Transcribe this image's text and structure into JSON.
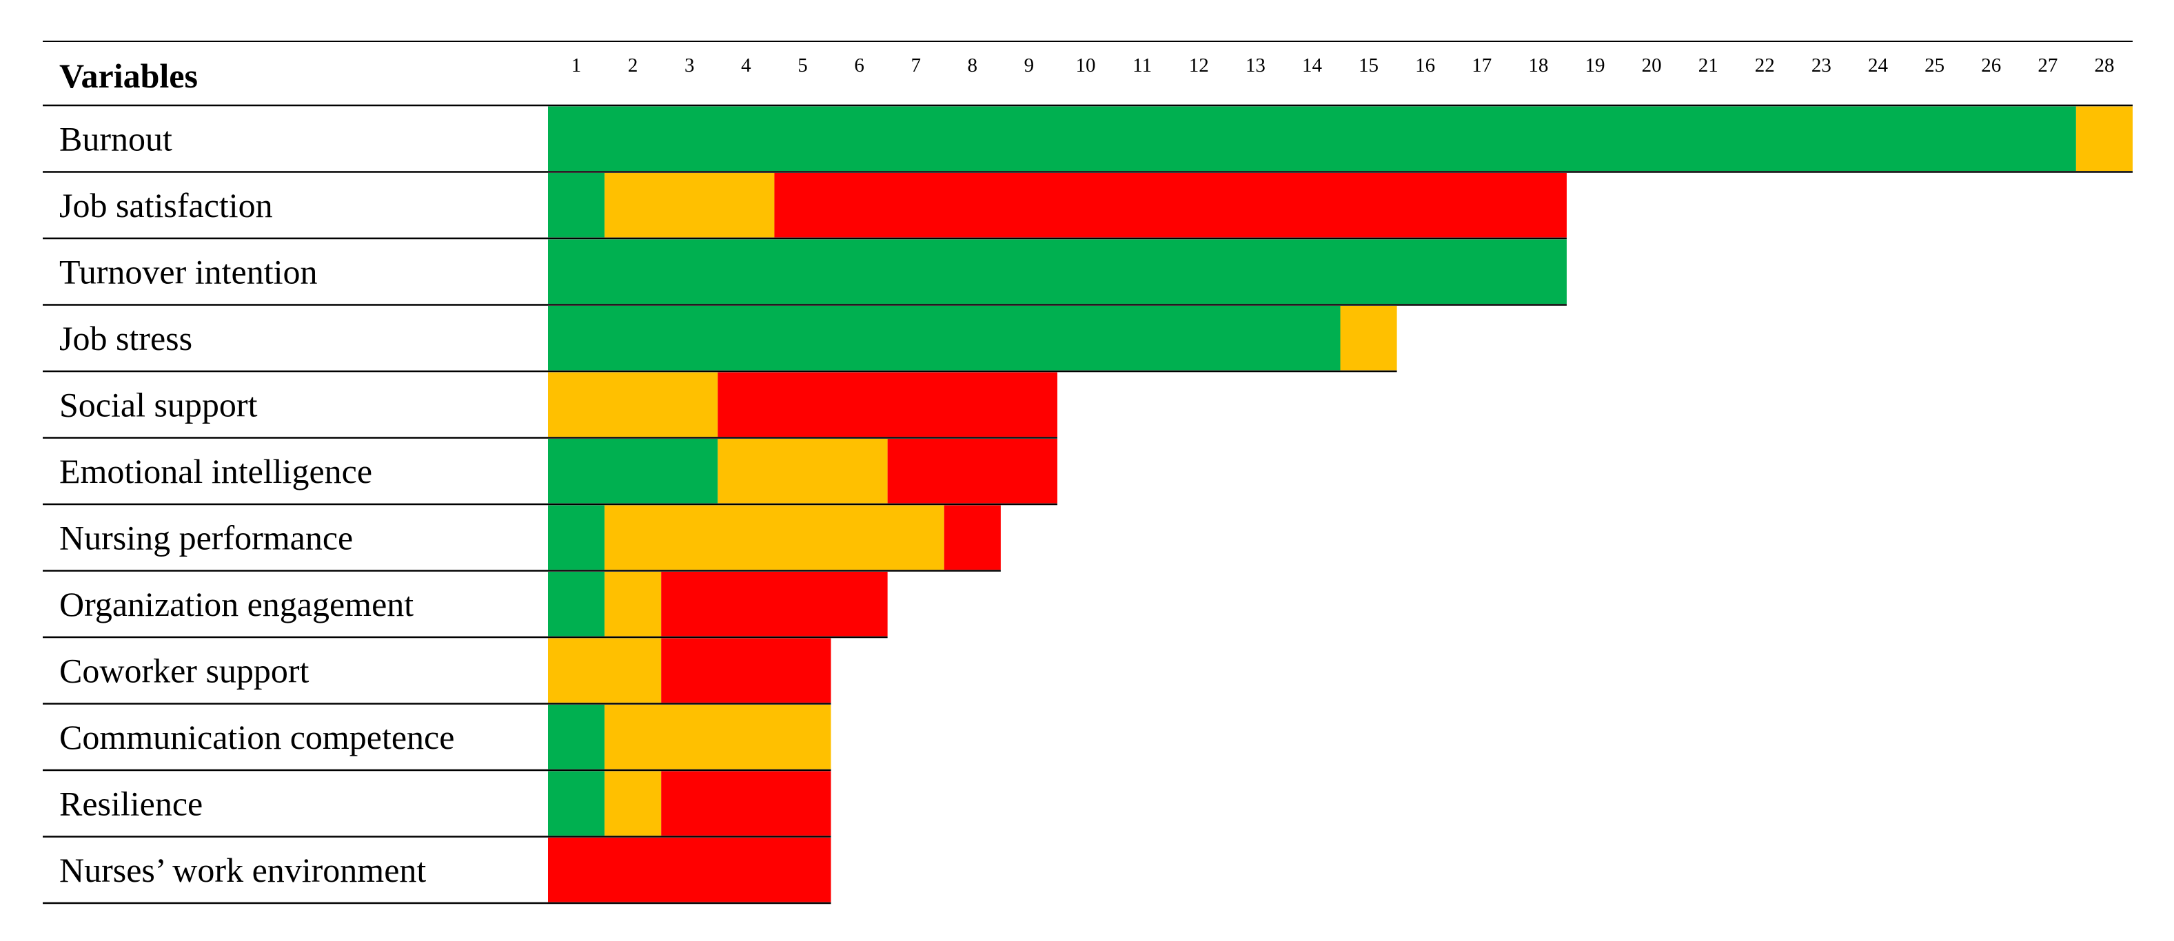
{
  "chart_data": {
    "type": "bar",
    "orientation": "horizontal-stacked",
    "header": "Variables",
    "columns": [
      "1",
      "2",
      "3",
      "4",
      "5",
      "6",
      "7",
      "8",
      "9",
      "10",
      "11",
      "12",
      "13",
      "14",
      "15",
      "16",
      "17",
      "18",
      "19",
      "20",
      "21",
      "22",
      "23",
      "24",
      "25",
      "26",
      "27",
      "28"
    ],
    "colors": {
      "green": "#00b050",
      "orange": "#ffc000",
      "red": "#ff0000"
    },
    "rows": [
      {
        "label": "Burnout",
        "segments": [
          {
            "color": "green",
            "count": 27
          },
          {
            "color": "orange",
            "count": 1
          }
        ]
      },
      {
        "label": "Job satisfaction",
        "segments": [
          {
            "color": "green",
            "count": 1
          },
          {
            "color": "orange",
            "count": 3
          },
          {
            "color": "red",
            "count": 14
          }
        ]
      },
      {
        "label": "Turnover intention",
        "segments": [
          {
            "color": "green",
            "count": 18
          }
        ]
      },
      {
        "label": "Job stress",
        "segments": [
          {
            "color": "green",
            "count": 14
          },
          {
            "color": "orange",
            "count": 1
          }
        ]
      },
      {
        "label": "Social support",
        "segments": [
          {
            "color": "orange",
            "count": 3
          },
          {
            "color": "red",
            "count": 6
          }
        ]
      },
      {
        "label": "Emotional intelligence",
        "segments": [
          {
            "color": "green",
            "count": 3
          },
          {
            "color": "orange",
            "count": 3
          },
          {
            "color": "red",
            "count": 3
          }
        ]
      },
      {
        "label": "Nursing performance",
        "segments": [
          {
            "color": "green",
            "count": 1
          },
          {
            "color": "orange",
            "count": 6
          },
          {
            "color": "red",
            "count": 1
          }
        ]
      },
      {
        "label": "Organization engagement",
        "segments": [
          {
            "color": "green",
            "count": 1
          },
          {
            "color": "orange",
            "count": 1
          },
          {
            "color": "red",
            "count": 4
          }
        ]
      },
      {
        "label": "Coworker support",
        "segments": [
          {
            "color": "orange",
            "count": 2
          },
          {
            "color": "red",
            "count": 3
          }
        ]
      },
      {
        "label": "Communication competence",
        "segments": [
          {
            "color": "green",
            "count": 1
          },
          {
            "color": "orange",
            "count": 4
          }
        ]
      },
      {
        "label": "Resilience",
        "segments": [
          {
            "color": "green",
            "count": 1
          },
          {
            "color": "orange",
            "count": 1
          },
          {
            "color": "red",
            "count": 3
          }
        ]
      },
      {
        "label": "Nurses’ work environment",
        "segments": [
          {
            "color": "red",
            "count": 5
          }
        ]
      }
    ],
    "title": "",
    "xlabel": "",
    "ylabel": "",
    "xlim": [
      0,
      28
    ],
    "grid": false,
    "legend": "none"
  }
}
